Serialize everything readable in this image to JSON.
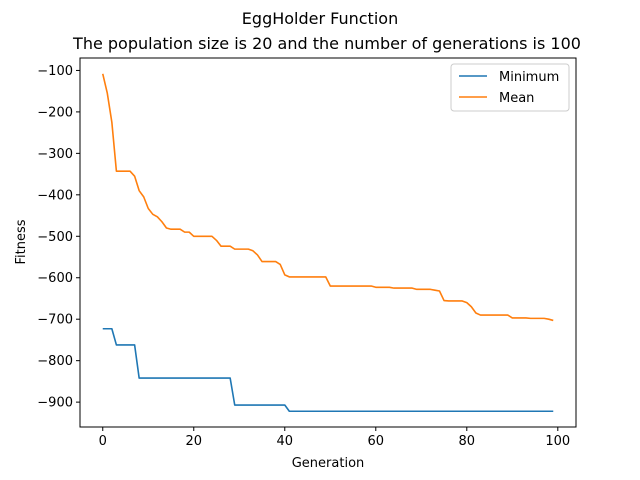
{
  "chart_data": {
    "type": "line",
    "title": "EggHolder Function",
    "subtitle": "The population size is 20 and the number of generations is 100",
    "xlabel": "Generation",
    "ylabel": "Fitness",
    "xlim": [
      -5,
      104
    ],
    "ylim": [
      -960,
      -70
    ],
    "xticks": [
      0,
      20,
      40,
      60,
      80,
      100
    ],
    "yticks": [
      -900,
      -800,
      -700,
      -600,
      -500,
      -400,
      -300,
      -200,
      -100
    ],
    "grid": false,
    "legend_position": "top-right",
    "x": [
      0,
      1,
      2,
      3,
      4,
      5,
      6,
      7,
      8,
      9,
      10,
      11,
      12,
      13,
      14,
      15,
      16,
      17,
      18,
      19,
      20,
      21,
      22,
      23,
      24,
      25,
      26,
      27,
      28,
      29,
      30,
      31,
      32,
      33,
      34,
      35,
      36,
      37,
      38,
      39,
      40,
      41,
      42,
      43,
      44,
      45,
      46,
      47,
      48,
      49,
      50,
      51,
      52,
      53,
      54,
      55,
      56,
      57,
      58,
      59,
      60,
      61,
      62,
      63,
      64,
      65,
      66,
      67,
      68,
      69,
      70,
      71,
      72,
      73,
      74,
      75,
      76,
      77,
      78,
      79,
      80,
      81,
      82,
      83,
      84,
      85,
      86,
      87,
      88,
      89,
      90,
      91,
      92,
      93,
      94,
      95,
      96,
      97,
      98,
      99
    ],
    "series": [
      {
        "name": "Minimum",
        "color": "#1f77b4",
        "values": [
          -723,
          -723,
          -723,
          -762,
          -762,
          -762,
          -762,
          -762,
          -842,
          -842,
          -842,
          -842,
          -842,
          -842,
          -842,
          -842,
          -842,
          -842,
          -842,
          -842,
          -842,
          -842,
          -842,
          -842,
          -842,
          -842,
          -842,
          -842,
          -842,
          -907,
          -907,
          -907,
          -907,
          -907,
          -907,
          -907,
          -907,
          -907,
          -907,
          -907,
          -907,
          -922,
          -922,
          -922,
          -922,
          -922,
          -922,
          -922,
          -922,
          -922,
          -922,
          -922,
          -922,
          -922,
          -922,
          -922,
          -922,
          -922,
          -922,
          -922,
          -922,
          -922,
          -922,
          -922,
          -922,
          -922,
          -922,
          -922,
          -922,
          -922,
          -922,
          -922,
          -922,
          -922,
          -922,
          -922,
          -922,
          -922,
          -922,
          -922,
          -922,
          -922,
          -922,
          -922,
          -922,
          -922,
          -922,
          -922,
          -922,
          -922,
          -922,
          -922,
          -922,
          -922,
          -922,
          -922,
          -922,
          -922,
          -922,
          -922
        ]
      },
      {
        "name": "Mean",
        "color": "#ff7f0e",
        "values": [
          -108,
          -155,
          -225,
          -343,
          -343,
          -343,
          -343,
          -355,
          -390,
          -405,
          -433,
          -447,
          -453,
          -465,
          -480,
          -483,
          -483,
          -483,
          -490,
          -490,
          -500,
          -500,
          -500,
          -500,
          -500,
          -510,
          -524,
          -524,
          -524,
          -531,
          -531,
          -531,
          -531,
          -535,
          -545,
          -561,
          -561,
          -561,
          -561,
          -568,
          -593,
          -598,
          -598,
          -598,
          -598,
          -598,
          -598,
          -598,
          -598,
          -598,
          -620,
          -620,
          -620,
          -620,
          -620,
          -620,
          -620,
          -620,
          -620,
          -620,
          -623,
          -623,
          -623,
          -623,
          -625,
          -625,
          -625,
          -625,
          -625,
          -628,
          -628,
          -628,
          -628,
          -630,
          -632,
          -655,
          -656,
          -656,
          -656,
          -656,
          -660,
          -670,
          -685,
          -690,
          -690,
          -690,
          -690,
          -690,
          -690,
          -690,
          -697,
          -697,
          -697,
          -697,
          -698,
          -698,
          -698,
          -698,
          -700,
          -703
        ]
      }
    ]
  }
}
